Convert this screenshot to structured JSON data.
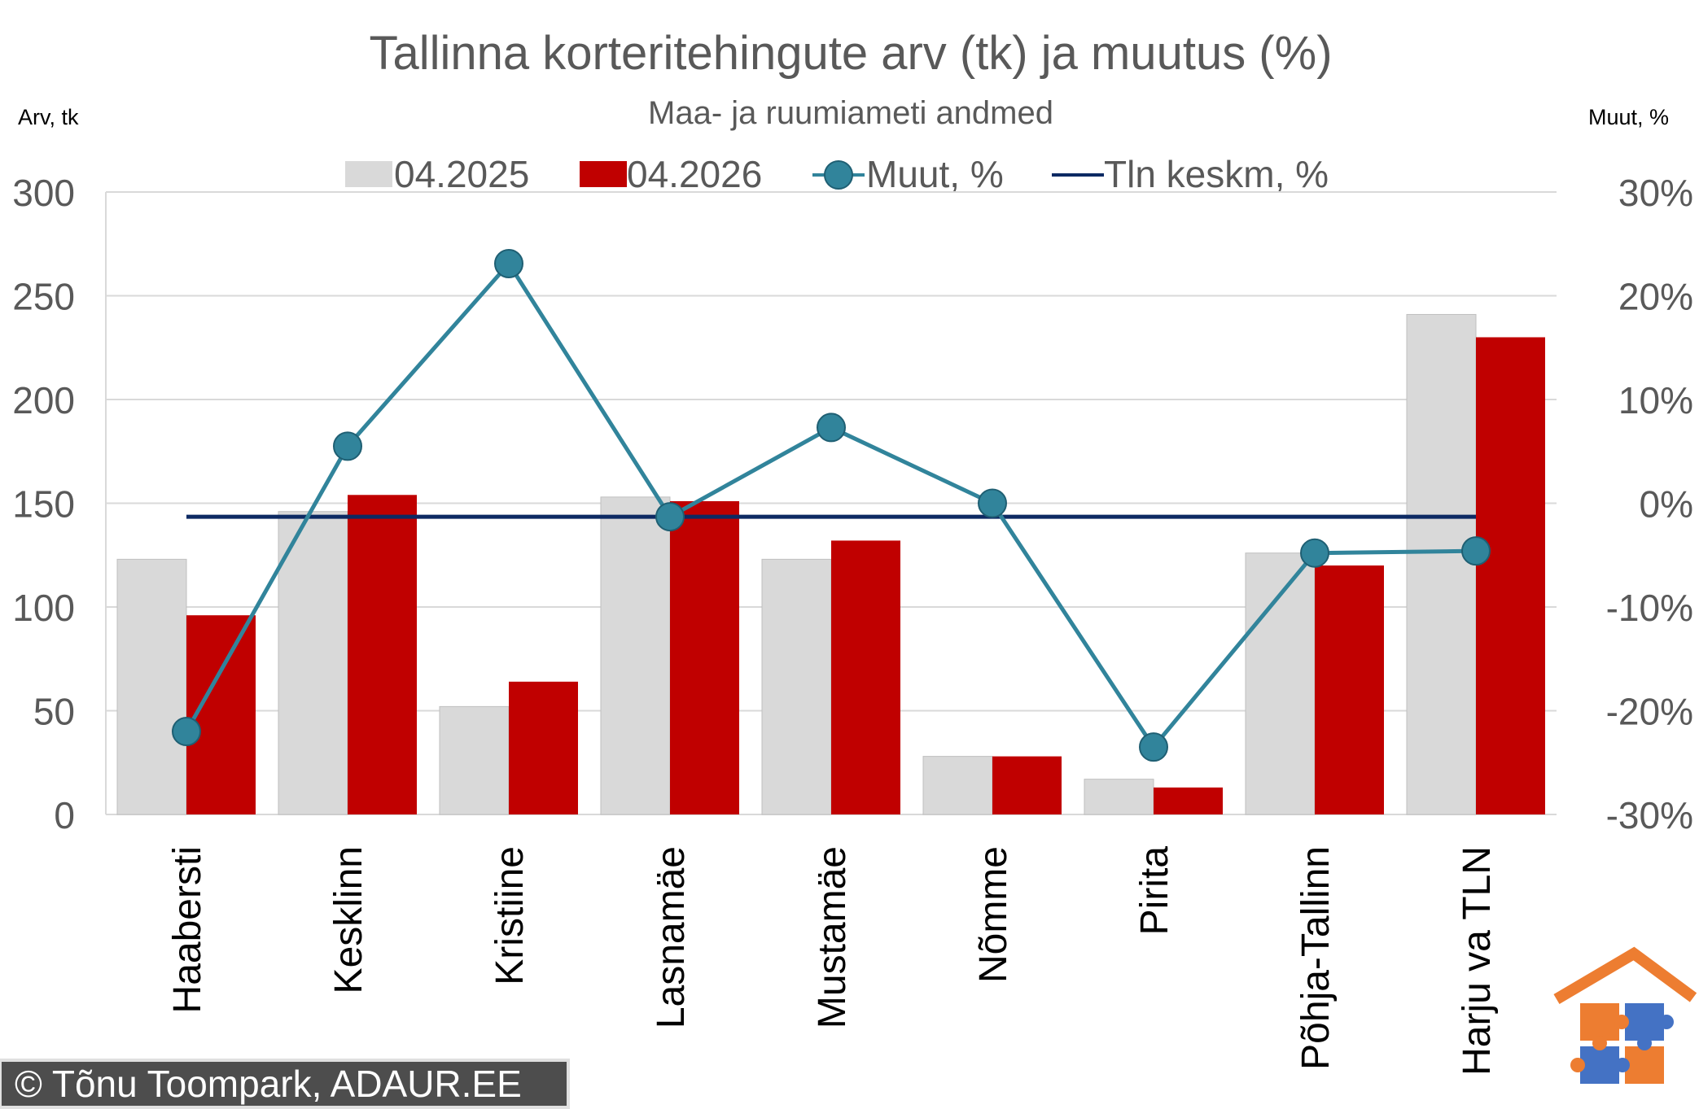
{
  "chart_data": {
    "type": "bar",
    "title": "Tallinna korteritehingute arv (tk) ja muutus (%)",
    "subtitle": "Maa- ja ruumiameti andmed",
    "ylabel": "Arv, tk",
    "y2label": "Muut, %",
    "categories": [
      "Haabersti",
      "Kesklinn",
      "Kristiine",
      "Lasnamäe",
      "Mustamäe",
      "Nõmme",
      "Pirita",
      "Põhja-Tallinn",
      "Harju va TLN"
    ],
    "ylim": [
      0,
      300
    ],
    "yticks": [
      "0",
      "50",
      "100",
      "150",
      "200",
      "250",
      "300"
    ],
    "y2lim": [
      -30,
      30
    ],
    "y2ticks": [
      "-30%",
      "-20%",
      "-10%",
      "0%",
      "10%",
      "20%",
      "30%"
    ],
    "grid": true,
    "legend_position": "top",
    "series": [
      {
        "name": "04.2025",
        "kind": "bar",
        "axis": "left",
        "color": "#d9d9d9",
        "values": [
          123,
          146,
          52,
          153,
          123,
          28,
          17,
          126,
          241
        ]
      },
      {
        "name": "04.2026",
        "kind": "bar",
        "axis": "left",
        "color": "#c00000",
        "values": [
          96,
          154,
          64,
          151,
          132,
          28,
          13,
          120,
          230
        ]
      },
      {
        "name": "Muut, %",
        "kind": "line-markers",
        "axis": "right",
        "color": "#31849b",
        "values": [
          -22.0,
          5.5,
          23.1,
          -1.3,
          7.3,
          0.0,
          -23.5,
          -4.8,
          -4.6
        ]
      },
      {
        "name": "Tln keskm, %",
        "kind": "line",
        "axis": "right",
        "color": "#0d2a63",
        "values": [
          -1.3,
          -1.3,
          -1.3,
          -1.3,
          -1.3,
          -1.3,
          -1.3,
          -1.3,
          -1.3
        ]
      }
    ]
  },
  "footer": {
    "copyright": "© Tõnu Toompark, ADAUR.EE"
  },
  "logo": {
    "icon": "house-puzzle-logo",
    "colors": [
      "#ed7d31",
      "#4472c4"
    ]
  }
}
